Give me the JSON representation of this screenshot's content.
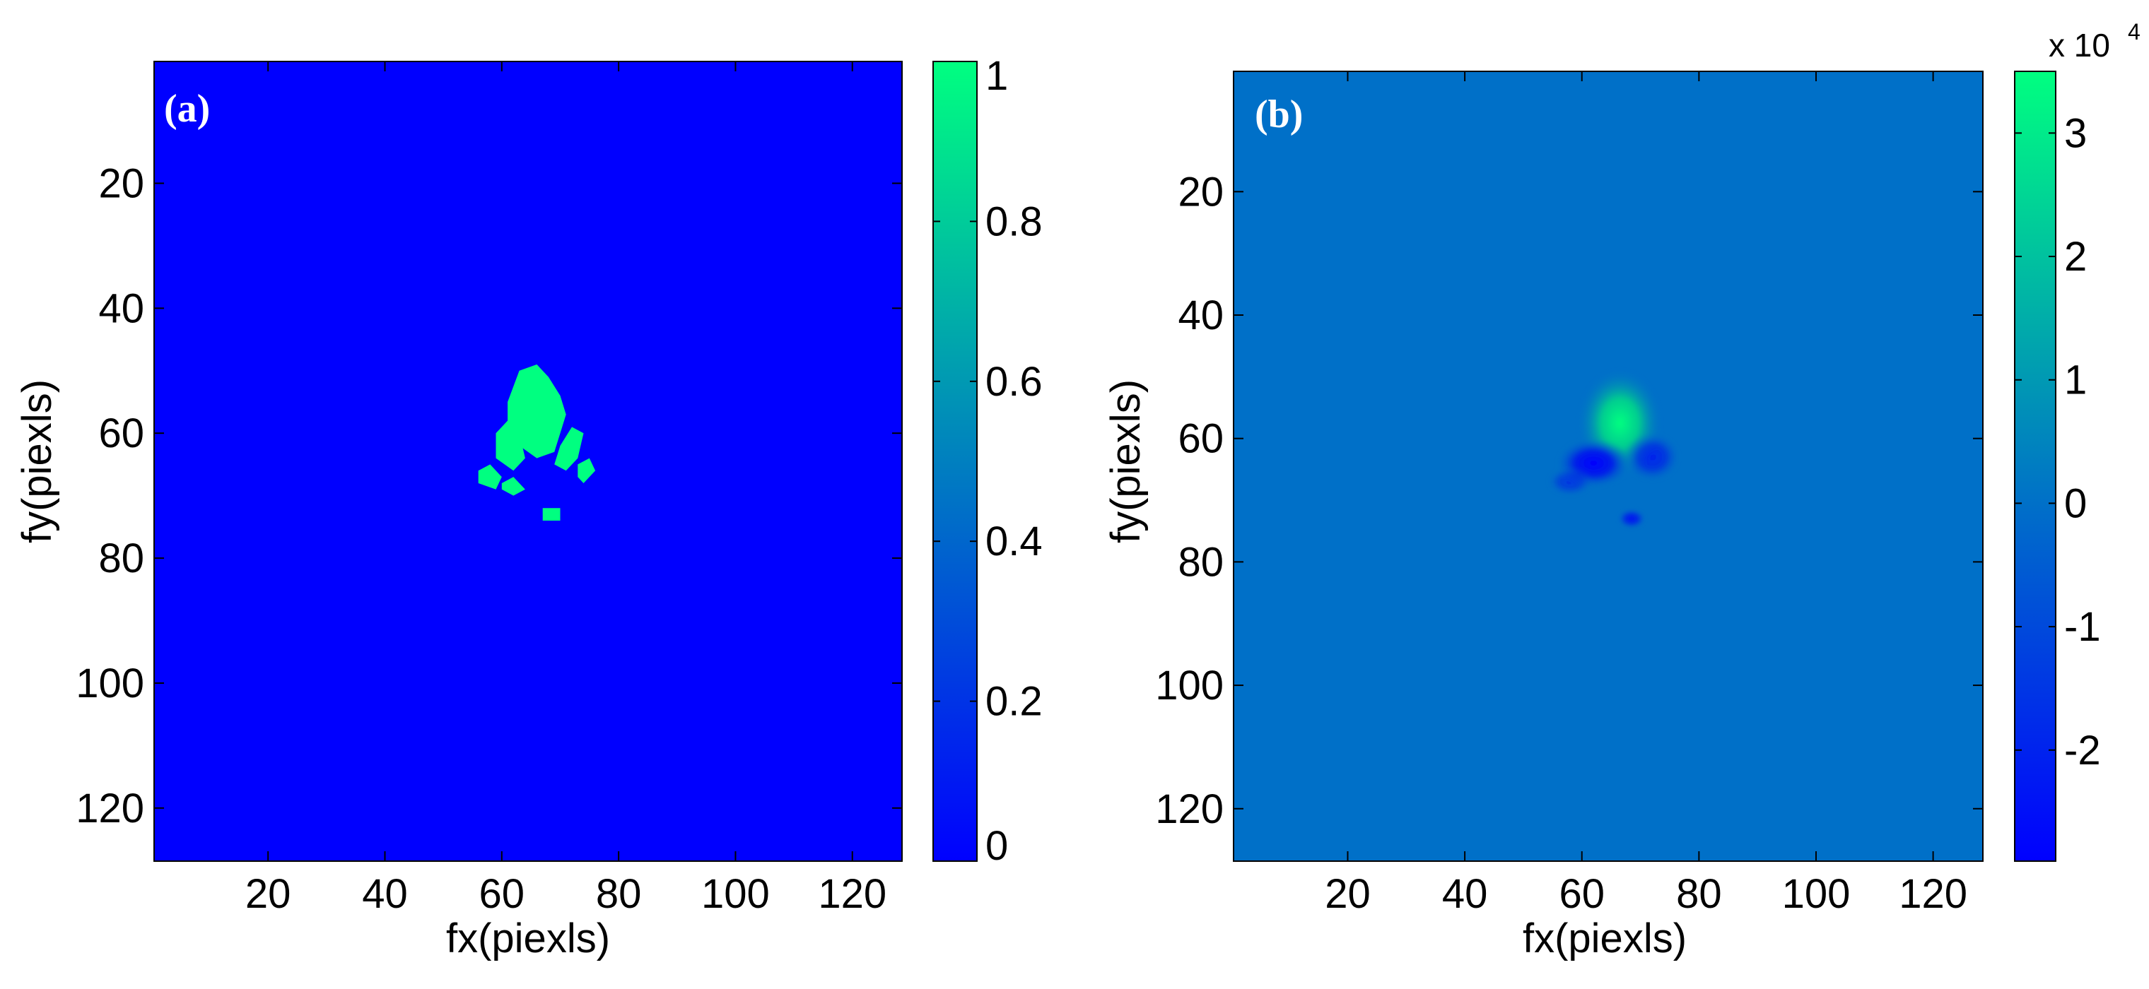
{
  "chart_data": [
    {
      "type": "heatmap",
      "panel_label": "(a)",
      "xlabel": "fx(piexls)",
      "ylabel": "fy(piexls)",
      "xlim": [
        1,
        128
      ],
      "ylim": [
        1,
        128
      ],
      "y_reversed": true,
      "xticks": [
        20,
        40,
        60,
        80,
        100,
        120
      ],
      "yticks": [
        20,
        40,
        60,
        80,
        100,
        120
      ],
      "background_value": 0,
      "colorbar": {
        "range": [
          0,
          1
        ],
        "ticks": [
          0,
          0.2,
          0.4,
          0.6,
          0.8,
          1
        ],
        "tick_labels": [
          "0",
          "0.2",
          "0.4",
          "0.6",
          "0.8",
          "1"
        ],
        "exponent_label": ""
      },
      "colors": {
        "low": "#0000ff",
        "high": "#00ff80",
        "background": "#0000ff"
      },
      "features": [
        {
          "name": "center-lobe",
          "value": 1,
          "points": [
            [
              61,
              55
            ],
            [
              63,
              50
            ],
            [
              66,
              49
            ],
            [
              68,
              51
            ],
            [
              70,
              54
            ],
            [
              71,
              57
            ],
            [
              70,
              60
            ],
            [
              69,
              63
            ],
            [
              66,
              64
            ],
            [
              63,
              62
            ],
            [
              61,
              59
            ]
          ]
        },
        {
          "name": "left-wing",
          "value": 1,
          "points": [
            [
              59,
              60
            ],
            [
              61,
              58
            ],
            [
              63,
              60
            ],
            [
              64,
              64
            ],
            [
              62,
              66
            ],
            [
              59,
              64
            ]
          ]
        },
        {
          "name": "right-wing",
          "value": 1,
          "points": [
            [
              70,
              62
            ],
            [
              72,
              59
            ],
            [
              74,
              60
            ],
            [
              73,
              64
            ],
            [
              71,
              66
            ],
            [
              69,
              65
            ]
          ]
        },
        {
          "name": "left-tip",
          "value": 1,
          "points": [
            [
              56,
              66
            ],
            [
              58,
              65
            ],
            [
              60,
              67
            ],
            [
              59,
              69
            ],
            [
              56,
              68
            ]
          ]
        },
        {
          "name": "mid-left-tip",
          "value": 1,
          "points": [
            [
              60,
              68
            ],
            [
              62,
              67
            ],
            [
              64,
              69
            ],
            [
              62,
              70
            ],
            [
              60,
              69
            ]
          ]
        },
        {
          "name": "right-tip",
          "value": 1,
          "points": [
            [
              73,
              65
            ],
            [
              75,
              64
            ],
            [
              76,
              66
            ],
            [
              74,
              68
            ],
            [
              73,
              67
            ]
          ]
        },
        {
          "name": "bottom-dot",
          "value": 1,
          "points": [
            [
              67,
              72
            ],
            [
              70,
              72
            ],
            [
              70,
              74
            ],
            [
              67,
              74
            ]
          ]
        }
      ]
    },
    {
      "type": "heatmap",
      "panel_label": "(b)",
      "xlabel": "fx(piexls)",
      "ylabel": "fy(piexls)",
      "xlim": [
        1,
        128
      ],
      "ylim": [
        1,
        128
      ],
      "y_reversed": true,
      "xticks": [
        20,
        40,
        60,
        80,
        100,
        120
      ],
      "yticks": [
        20,
        40,
        60,
        80,
        100,
        120
      ],
      "background_value": 0,
      "colorbar": {
        "range": [
          -2.9,
          3.5
        ],
        "ticks": [
          -2,
          -1,
          0,
          1,
          2,
          3
        ],
        "tick_labels": [
          "-2",
          "-1",
          "0",
          "1",
          "2",
          "3"
        ],
        "exponent_label": "x 10",
        "exponent_power": "4"
      },
      "colors": {
        "low": "#0000ff",
        "mid": "#0070c8",
        "high": "#00ff80",
        "background": "#0070c8"
      },
      "features": [
        {
          "name": "positive-peak",
          "value": 3.5,
          "center": [
            66.5,
            57.5
          ],
          "radius": [
            4.5,
            5.5
          ]
        },
        {
          "name": "negative-left",
          "value": -2.5,
          "center": [
            62,
            64
          ],
          "radius": [
            4,
            2.5
          ]
        },
        {
          "name": "negative-right",
          "value": -1.5,
          "center": [
            72,
            63
          ],
          "radius": [
            3,
            2.5
          ]
        },
        {
          "name": "negative-tip",
          "value": -1.0,
          "center": [
            58,
            67
          ],
          "radius": [
            2.5,
            1.5
          ]
        },
        {
          "name": "negative-dot",
          "value": -2.0,
          "center": [
            68.5,
            73
          ],
          "radius": [
            1.5,
            1
          ]
        }
      ]
    }
  ]
}
